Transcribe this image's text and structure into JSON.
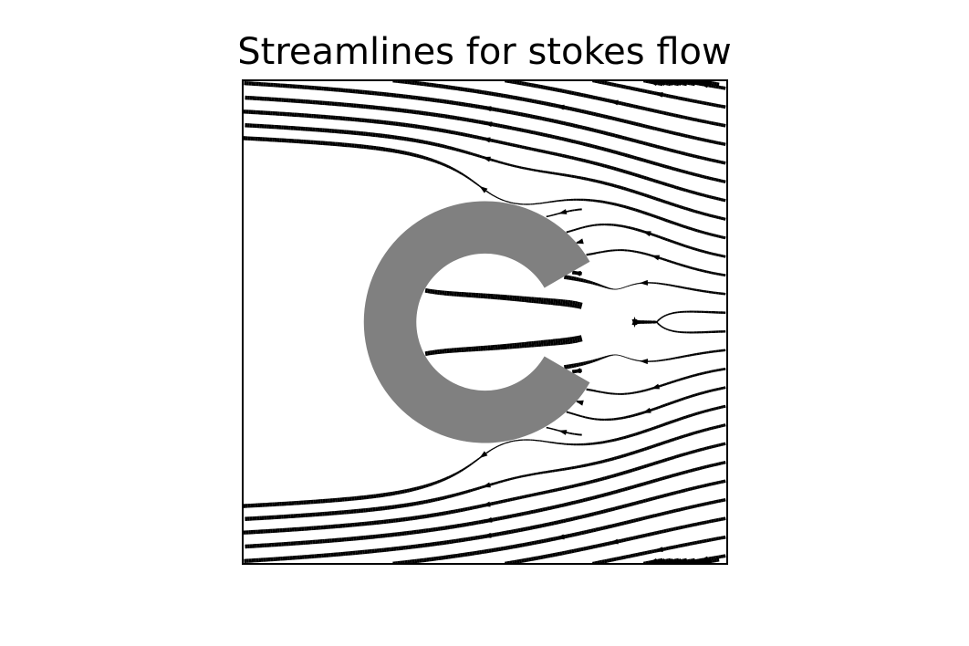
{
  "chart_data": {
    "type": "streamplot",
    "title": "Streamlines for stokes flow",
    "xlabel": "",
    "ylabel": "",
    "xlim": [
      -3,
      3
    ],
    "ylim": [
      -3,
      3
    ],
    "axis_ticks": "hidden",
    "grid": false,
    "line_color": "#000000",
    "line_width_encodes": "flow speed",
    "obstacle": {
      "shape": "annulus with wedge opening toward +x",
      "center": [
        0,
        0
      ],
      "outer_radius": 1.5,
      "inner_radius": 0.85,
      "opening_half_angle_deg": 30,
      "color": "#808080"
    },
    "flow_direction": "from +x (right) toward -x (left), diverging around obstacle"
  }
}
